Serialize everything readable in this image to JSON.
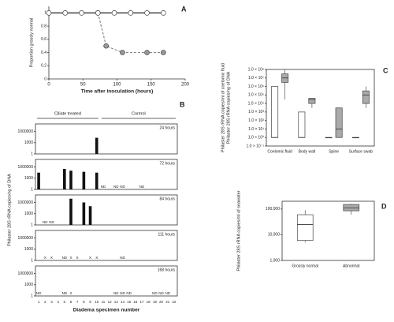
{
  "chart_data": [
    {
      "type": "line",
      "label": "A",
      "xlabel": "Time after inoculation (hours)",
      "ylabel": [
        "Proportion grossly normal"
      ],
      "xlim": [
        0,
        200
      ],
      "xticks": [
        0,
        50,
        100,
        150,
        200
      ],
      "ylim": [
        0,
        1.1
      ],
      "yticks": [
        0,
        0.2,
        0.4,
        0.6,
        0.8,
        1
      ],
      "series": [
        {
          "x": [
            72,
            84,
            108,
            144,
            168
          ],
          "values": [
            1,
            0.5,
            0.4,
            0.4,
            0.4
          ],
          "color": "#999999",
          "dashed": true
        },
        {
          "x": [
            0,
            24,
            48,
            72,
            96,
            120,
            144,
            168
          ],
          "values": [
            1,
            1,
            1,
            1,
            1,
            1,
            1,
            1
          ],
          "color": "#ffffff",
          "dashed": false
        }
      ]
    },
    {
      "type": "bar-panels",
      "label": "B",
      "log": true,
      "xlabel": "Diadema specimen number",
      "ylabel": [
        "Philaster 28S rRNA copies/ng of DNA"
      ],
      "groups": [
        {
          "label": "Ciliate treated",
          "count": 10
        },
        {
          "label": "Control",
          "count": 12
        }
      ],
      "categories": [
        1,
        2,
        3,
        4,
        5,
        6,
        7,
        8,
        9,
        10,
        11,
        12,
        13,
        14,
        15,
        16,
        17,
        18,
        19,
        20,
        21,
        22
      ],
      "ylim": [
        1,
        100000000
      ],
      "yticks": [
        1,
        1000,
        1000000
      ],
      "panels": [
        {
          "label": "24 hours",
          "values": [
            null,
            null,
            null,
            null,
            null,
            null,
            null,
            null,
            null,
            20000,
            null,
            null,
            null,
            null,
            null,
            null,
            null,
            null,
            null,
            null,
            null,
            null
          ],
          "markers": [
            null,
            null,
            null,
            null,
            null,
            null,
            null,
            null,
            null,
            null,
            null,
            null,
            null,
            null,
            null,
            null,
            null,
            null,
            null,
            null,
            null,
            null
          ]
        },
        {
          "label": "72 hours",
          "values": [
            30000,
            null,
            null,
            null,
            300000,
            100000,
            null,
            50000,
            null,
            30000,
            null,
            null,
            null,
            null,
            null,
            null,
            null,
            null,
            null,
            null,
            null,
            null
          ],
          "markers": [
            null,
            null,
            null,
            null,
            null,
            null,
            null,
            null,
            null,
            null,
            "ND",
            null,
            "ND",
            "ND",
            null,
            null,
            "ND",
            null,
            null,
            null,
            null,
            null
          ]
        },
        {
          "label": "84 hours",
          "values": [
            null,
            null,
            null,
            null,
            null,
            10000000,
            null,
            1000000,
            100000,
            null,
            null,
            null,
            null,
            null,
            null,
            null,
            null,
            null,
            null,
            null,
            null,
            null
          ],
          "markers": [
            null,
            "ND",
            "ND",
            null,
            null,
            null,
            null,
            null,
            null,
            null,
            null,
            null,
            null,
            null,
            null,
            null,
            null,
            null,
            null,
            null,
            null,
            null
          ]
        },
        {
          "label": "111 hours",
          "values": [
            null,
            null,
            null,
            null,
            null,
            null,
            null,
            null,
            null,
            null,
            null,
            null,
            null,
            null,
            null,
            null,
            null,
            null,
            null,
            null,
            null,
            null
          ],
          "markers": [
            null,
            "X",
            "X",
            null,
            "ND",
            "X",
            "X",
            null,
            "X",
            "X",
            null,
            null,
            null,
            "ND",
            null,
            null,
            null,
            null,
            null,
            null,
            null,
            null
          ]
        },
        {
          "label": "168 hours",
          "values": [
            null,
            null,
            null,
            null,
            null,
            null,
            null,
            null,
            null,
            null,
            null,
            null,
            null,
            null,
            null,
            null,
            null,
            null,
            null,
            null,
            null,
            null
          ],
          "markers": [
            "ND",
            null,
            null,
            null,
            "ND",
            "X",
            null,
            null,
            null,
            null,
            null,
            null,
            "ND",
            "ND",
            "ND",
            null,
            null,
            null,
            "ND",
            "ND",
            "ND",
            null
          ]
        }
      ]
    },
    {
      "type": "box",
      "label": "C",
      "log": true,
      "ylabel": [
        "Philaster 28S rRNA copies/ml of coelomic fluid",
        "Philaster 28S rRNA copies/ng of DNA"
      ],
      "categories": [
        "Coelomic fluid",
        "Body wall",
        "Spine",
        "Surface swab"
      ],
      "ylim": [
        0.1,
        100000000
      ],
      "yticks": [
        {
          "value": 0.1,
          "label": "1.0 × 10⁻¹"
        },
        {
          "value": 1,
          "label": "1.0 × 10⁰"
        },
        {
          "value": 10,
          "label": "1.0 × 10¹"
        },
        {
          "value": 100,
          "label": "1.0 × 10²"
        },
        {
          "value": 1000,
          "label": "1.0 × 10³"
        },
        {
          "value": 10000,
          "label": "1.0 × 10⁴"
        },
        {
          "value": 100000,
          "label": "1.0 × 10⁵"
        },
        {
          "value": 1000000,
          "label": "1.0 × 10⁶"
        },
        {
          "value": 10000000,
          "label": "1.0 × 10⁷"
        },
        {
          "value": 100000000,
          "label": "1.0 × 10⁸"
        }
      ],
      "series": [
        {
          "color": "#ffffff",
          "boxes": [
            {
              "min": 1,
              "q1": 1,
              "median": 1,
              "q3": 1000000,
              "max": 1000000
            },
            {
              "min": 1,
              "q1": 1,
              "median": 1,
              "q3": 1000,
              "max": 1000
            },
            {
              "min": 1,
              "q1": 1,
              "median": 1,
              "q3": 1,
              "max": 1
            },
            {
              "min": 1,
              "q1": 1,
              "median": 1,
              "q3": 1,
              "max": 1
            }
          ]
        },
        {
          "color": "#aaaaaa",
          "boxes": [
            {
              "min": 30000,
              "q1": 3000000,
              "median": 10000000,
              "q3": 30000000,
              "max": 100000000
            },
            {
              "min": 3000,
              "q1": 10000,
              "median": 30000,
              "q3": 40000,
              "max": 40000
            },
            {
              "min": 1,
              "q1": 1,
              "median": 10,
              "q3": 3000,
              "max": 3000
            },
            {
              "min": 3000,
              "q1": 10000,
              "median": 100000,
              "q3": 300000,
              "max": 1000000
            }
          ]
        }
      ]
    },
    {
      "type": "box",
      "label": "D",
      "log": true,
      "ylabel": [
        "Philaster 28S rRNA copies/ml of seawater"
      ],
      "categories": [
        "Grossly normal",
        "Abnormal"
      ],
      "ylim": [
        1000,
        200000
      ],
      "yticks": [
        {
          "value": 1000,
          "label": "1,000"
        },
        {
          "value": 10000,
          "label": "10,000"
        },
        {
          "value": 100000,
          "label": "100,000"
        }
      ],
      "series": [
        {
          "colors": [
            "#ffffff",
            "#aaaaaa"
          ],
          "boxes": [
            {
              "min": 5000,
              "q1": 6000,
              "median": 25000,
              "q3": 60000,
              "max": 90000
            },
            {
              "min": 60000,
              "q1": 85000,
              "median": 110000,
              "q3": 150000,
              "max": 160000
            }
          ]
        }
      ]
    }
  ]
}
